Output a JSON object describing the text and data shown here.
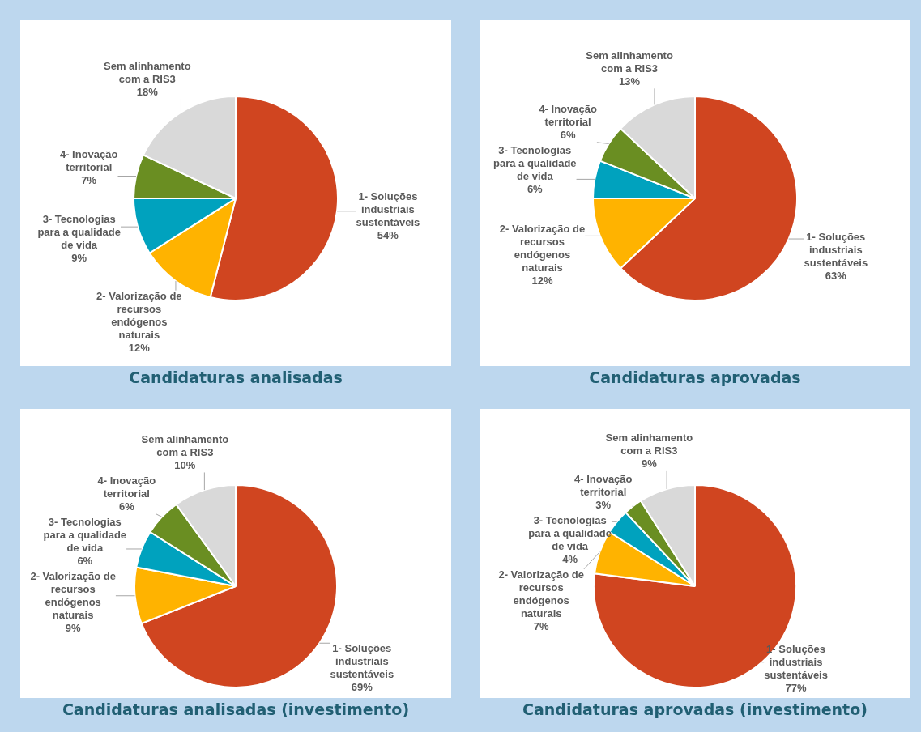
{
  "chart_data": [
    {
      "type": "pie",
      "title": "Candidaturas analisadas",
      "categories": [
        "1- Soluções industriais sustentáveis",
        "2- Valorização de recursos endógenos naturais",
        "3- Tecnologias para a qualidade de vida",
        "4- Inovação territorial",
        "Sem alinhamento com a RIS3"
      ],
      "values": [
        54,
        12,
        9,
        7,
        18
      ],
      "value_labels": [
        "54%",
        "12%",
        "9%",
        "7%",
        "18%"
      ],
      "colors": [
        "#d04520",
        "#ffb300",
        "#00a2be",
        "#6a8e22",
        "#d9d9d9"
      ]
    },
    {
      "type": "pie",
      "title": "Candidaturas aprovadas",
      "categories": [
        "1- Soluções industriais sustentáveis",
        "2- Valorização de recursos endógenos naturais",
        "3- Tecnologias para a qualidade de vida",
        "4- Inovação territorial",
        "Sem alinhamento com a RIS3"
      ],
      "values": [
        63,
        12,
        6,
        6,
        13
      ],
      "value_labels": [
        "63%",
        "12%",
        "6%",
        "6%",
        "13%"
      ],
      "colors": [
        "#d04520",
        "#ffb300",
        "#00a2be",
        "#6a8e22",
        "#d9d9d9"
      ]
    },
    {
      "type": "pie",
      "title": "Candidaturas analisadas (investimento)",
      "categories": [
        "1- Soluções industriais sustentáveis",
        "2- Valorização de recursos endógenos naturais",
        "3- Tecnologias para a qualidade de vida",
        "4- Inovação territorial",
        "Sem alinhamento com a RIS3"
      ],
      "values": [
        69,
        9,
        6,
        6,
        10
      ],
      "value_labels": [
        "69%",
        "9%",
        "6%",
        "6%",
        "10%"
      ],
      "colors": [
        "#d04520",
        "#ffb300",
        "#00a2be",
        "#6a8e22",
        "#d9d9d9"
      ]
    },
    {
      "type": "pie",
      "title": "Candidaturas aprovadas (investimento)",
      "categories": [
        "1- Soluções industriais sustentáveis",
        "2- Valorização de recursos endógenos naturais",
        "3- Tecnologias para a qualidade de vida",
        "4- Inovação territorial",
        "Sem alinhamento com a RIS3"
      ],
      "values": [
        77,
        7,
        4,
        3,
        9
      ],
      "value_labels": [
        "77%",
        "7%",
        "4%",
        "3%",
        "9%"
      ],
      "colors": [
        "#d04520",
        "#ffb300",
        "#00a2be",
        "#6a8e22",
        "#d9d9d9"
      ]
    }
  ]
}
